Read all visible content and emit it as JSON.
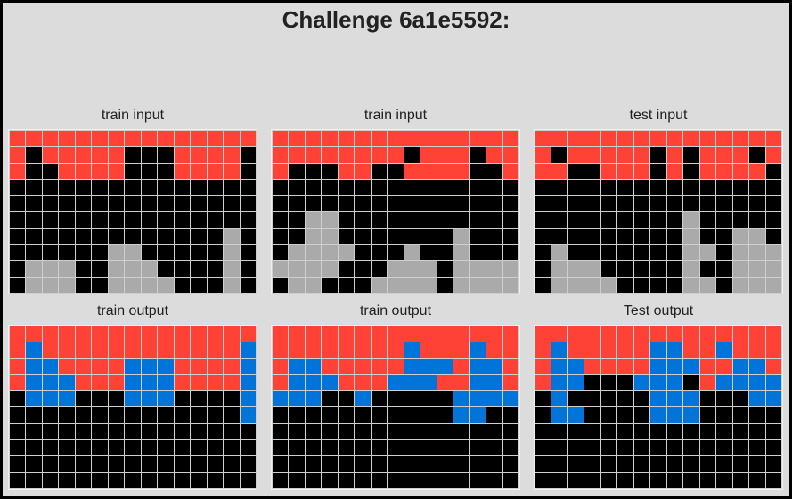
{
  "title": "Challenge 6a1e5592:",
  "palette": {
    "0": "#000000",
    "1": "#0074D9",
    "2": "#FF4136",
    "5": "#AAAAAA"
  },
  "panels": [
    {
      "label": "train input",
      "grid": [
        "222222222222222",
        "202222200022220",
        "200222200022220",
        "000000000000000",
        "000000000000000",
        "000000000000000",
        "000000000000050",
        "000000550000050",
        "055500555000050",
        "055500555500050"
      ]
    },
    {
      "label": "train input",
      "grid": [
        "222222222222222",
        "222222220222022",
        "200022002222002",
        "000000000000000",
        "000000000000000",
        "005500000000000",
        "005500000005000",
        "055550005005000",
        "555500055505555",
        "055000555505555"
      ]
    },
    {
      "label": "test input",
      "grid": [
        "222222222222222",
        "202222202022202",
        "220022202022220",
        "000000000000000",
        "000000000000000",
        "000000000500000",
        "000000000500550",
        "050000000550555",
        "055500000500555",
        "055550000550555"
      ]
    },
    {
      "label": "train output",
      "grid": [
        "222222222222222",
        "212222222222221",
        "211222211122221",
        "211122211122221",
        "011100011100001",
        "000000000000001",
        "000000000000000",
        "000000000000000",
        "000000000000000",
        "000000000000000"
      ]
    },
    {
      "label": "train output",
      "grid": [
        "222222222222222",
        "222222221222122",
        "211222221112112",
        "211122211122112",
        "111001000001111",
        "000000000001100",
        "000000000000000",
        "000000000000000",
        "000000000000000",
        "000000000000000"
      ]
    },
    {
      "label": "Test output",
      "grid": [
        "222222222222222",
        "212222211221222",
        "211222211122112",
        "211000111021111",
        "010000011100011",
        "011000011100000",
        "000000000000000",
        "000000000000000",
        "000000000000000",
        "000000000000000"
      ]
    }
  ]
}
